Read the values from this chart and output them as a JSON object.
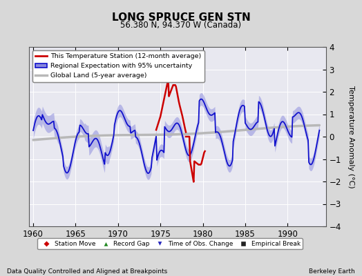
{
  "title": "LONG SPRUCE GEN STN",
  "subtitle": "56.380 N, 94.370 W (Canada)",
  "ylabel": "Temperature Anomaly (°C)",
  "xlabel_left": "Data Quality Controlled and Aligned at Breakpoints",
  "xlabel_right": "Berkeley Earth",
  "xlim": [
    1959.5,
    1994.5
  ],
  "ylim": [
    -4,
    4
  ],
  "yticks": [
    -4,
    -3,
    -2,
    -1,
    0,
    1,
    2,
    3,
    4
  ],
  "xticks": [
    1960,
    1965,
    1970,
    1975,
    1980,
    1985,
    1990
  ],
  "bg_color": "#d8d8d8",
  "plot_bg_color": "#e8e8f0",
  "grid_color": "#ffffff",
  "regional_color": "#1111cc",
  "regional_fill_color": "#8888dd",
  "station_color": "#cc0000",
  "global_color": "#b8b8b8",
  "obs_change_color": "#2222bb"
}
